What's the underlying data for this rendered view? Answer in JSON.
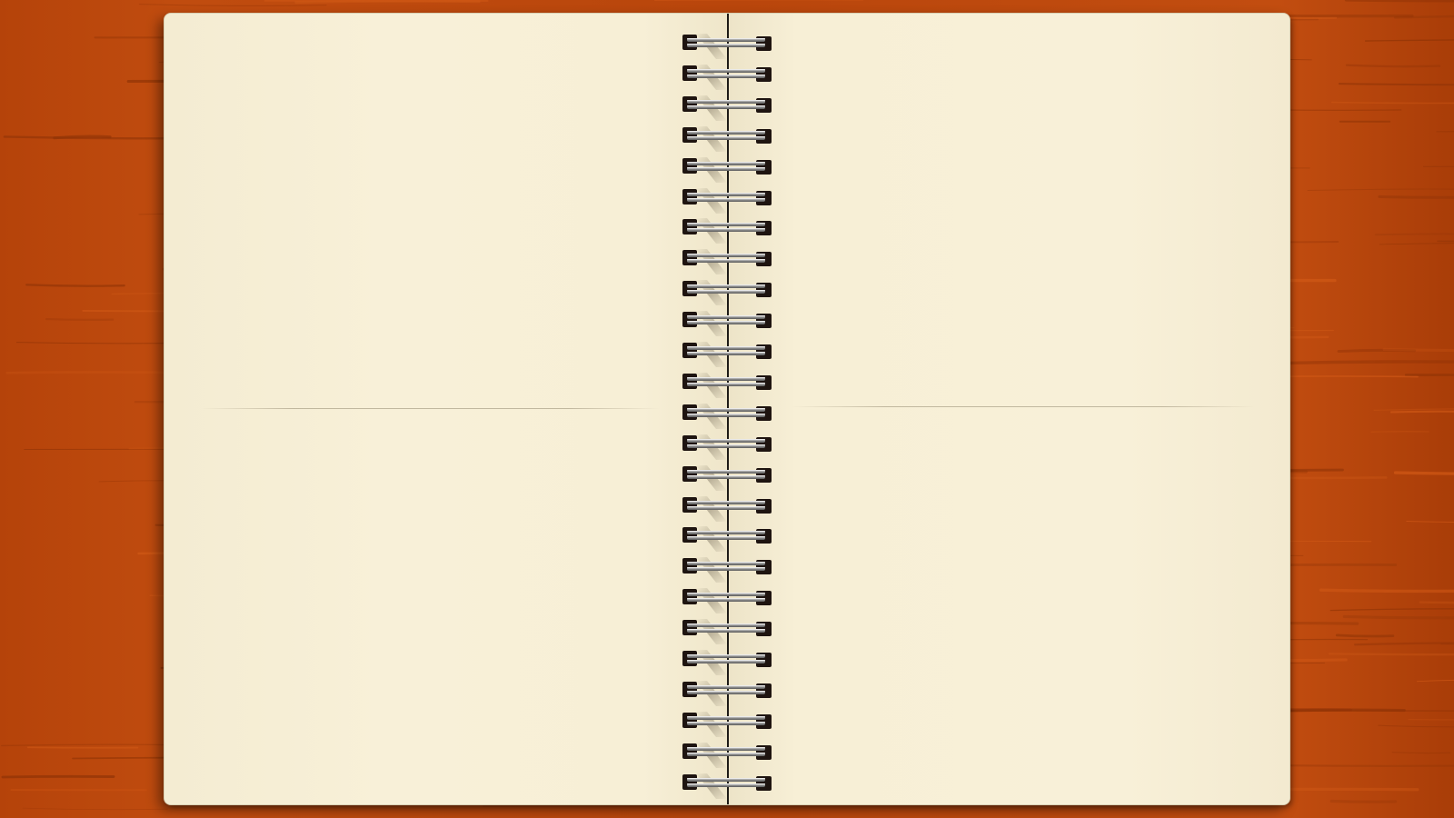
{
  "scene": {
    "type": "spiral-notebook",
    "state": "open-blank-pages"
  },
  "notebook": {
    "ring_count": 25,
    "left_page_text": "",
    "right_page_text": ""
  },
  "colors": {
    "desk_base": "#b8470c",
    "desk_dark": "#8f3306",
    "desk_light": "#d25a17",
    "paper": "#f7efd6",
    "spine": "#1d1a16",
    "ring_metal": "#9a9a9a",
    "ring_hole": "#1e1410"
  },
  "icons": {
    "spiral_ring": "spiral-ring-icon"
  }
}
